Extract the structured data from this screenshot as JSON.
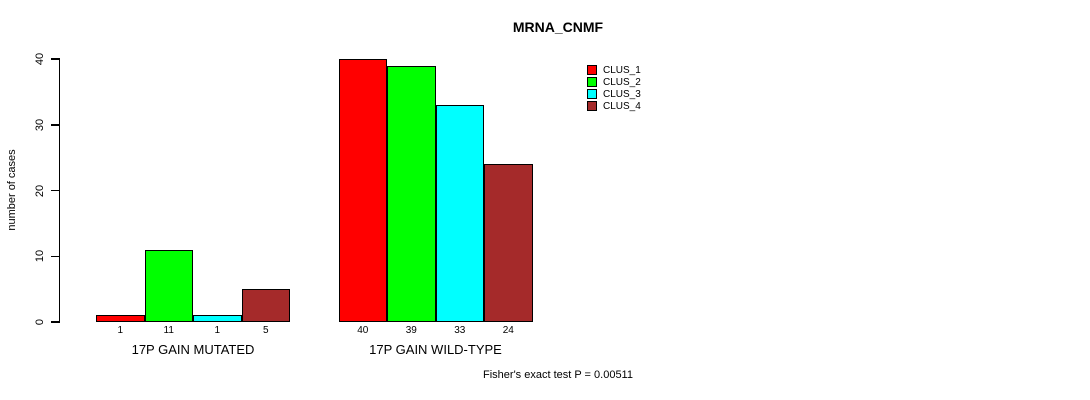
{
  "title": "MRNA_CNMF",
  "ylabel": "number of cases",
  "footer": "Fisher's exact test P = 0.00511",
  "legend": [
    {
      "label": "CLUS_1",
      "color": "#FF0000"
    },
    {
      "label": "CLUS_2",
      "color": "#00FF00"
    },
    {
      "label": "CLUS_3",
      "color": "#00FFFF"
    },
    {
      "label": "CLUS_4",
      "color": "#A52A2A"
    }
  ],
  "chart_data": {
    "type": "bar",
    "title": "MRNA_CNMF",
    "xlabel": "",
    "ylabel": "number of cases",
    "ylim": [
      0,
      40
    ],
    "yticks": [
      0,
      10,
      20,
      30,
      40
    ],
    "grid": false,
    "legend_position": "top-right",
    "categories": [
      "17P GAIN MUTATED",
      "17P GAIN WILD-TYPE"
    ],
    "series": [
      {
        "name": "CLUS_1",
        "color": "#FF0000",
        "values": [
          1,
          40
        ]
      },
      {
        "name": "CLUS_2",
        "color": "#00FF00",
        "values": [
          11,
          39
        ]
      },
      {
        "name": "CLUS_3",
        "color": "#00FFFF",
        "values": [
          1,
          33
        ]
      },
      {
        "name": "CLUS_4",
        "color": "#A52A2A",
        "values": [
          5,
          24
        ]
      }
    ],
    "bar_labels": [
      [
        1,
        11,
        1,
        5
      ],
      [
        40,
        39,
        33,
        24
      ]
    ],
    "annotation": "Fisher's exact test P = 0.00511"
  }
}
